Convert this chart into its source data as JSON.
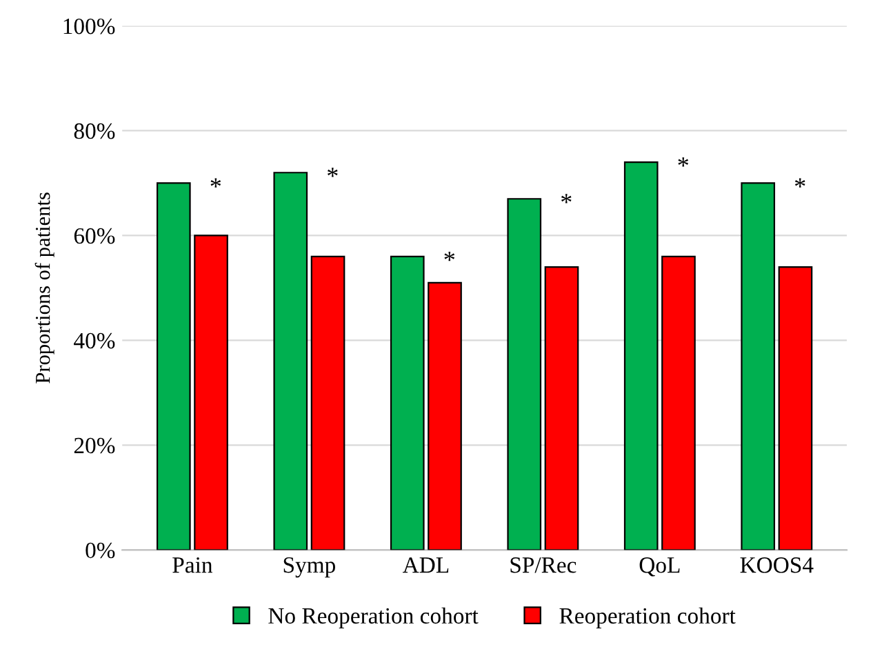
{
  "chart_data": {
    "type": "bar",
    "ylabel": "Proportions of patients",
    "categories": [
      "Pain",
      "Symp",
      "ADL",
      "SP/Rec",
      "QoL",
      "KOOS4"
    ],
    "series": [
      {
        "name": "No Reoperation cohort",
        "color": "#00b050",
        "values": [
          70,
          72,
          56,
          67,
          74,
          70
        ]
      },
      {
        "name": "Reoperation cohort",
        "color": "#ff0000",
        "values": [
          60,
          56,
          51,
          54,
          56,
          54
        ]
      }
    ],
    "ylim": [
      0,
      100
    ],
    "yticks": [
      {
        "value": 0,
        "label": "0%"
      },
      {
        "value": 20,
        "label": "20%"
      },
      {
        "value": 40,
        "label": "40%"
      },
      {
        "value": 60,
        "label": "60%"
      },
      {
        "value": 80,
        "label": "80%"
      },
      {
        "value": 100,
        "label": "100%"
      }
    ],
    "grid": "y",
    "legend": "bottom",
    "annotations": [
      "*",
      "*",
      "*",
      "*",
      "*",
      "*"
    ]
  }
}
